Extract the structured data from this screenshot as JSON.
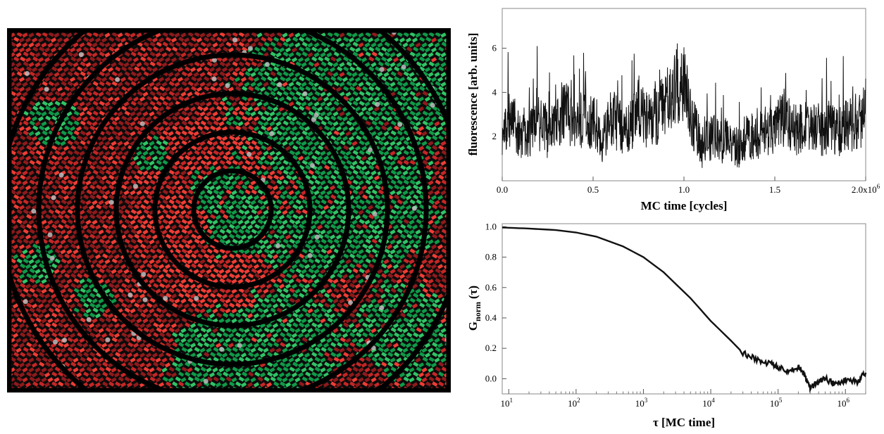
{
  "colors": {
    "background": "#0b0b0b",
    "red_dark": "#8e1a1c",
    "red": "#c52626",
    "red_bright": "#ee3d35",
    "green": "#0f9a48",
    "green_bright": "#30c466",
    "particle": "#bdbdbd",
    "rings": "#000000"
  },
  "simulation": {
    "ring_count": 6,
    "grid": "hexagonal lattice"
  },
  "chart_data": [
    {
      "type": "line",
      "title": "",
      "xlabel": "MC time [cycles]",
      "ylabel": "fluorescence [arb. units]",
      "xlim": [
        0,
        2000000
      ],
      "ylim": [
        0,
        7.8
      ],
      "x_scale": "linear",
      "x_ticks": [
        0,
        500000,
        1000000,
        1500000,
        2000000
      ],
      "x_tick_labels": [
        "0.0",
        "0.5",
        "1.0",
        "1.5",
        "2.0x10"
      ],
      "x_tick_exponent": "6",
      "y_ticks": [
        2,
        4,
        6
      ],
      "y_tick_labels": [
        "2",
        "4",
        "6"
      ],
      "series": [
        {
          "description": "noisy fluorescence trace",
          "x": [
            0,
            50000,
            100000,
            150000,
            200000,
            250000,
            300000,
            350000,
            400000,
            450000,
            500000,
            550000,
            600000,
            650000,
            700000,
            750000,
            800000,
            850000,
            900000,
            950000,
            1000000,
            1050000,
            1100000,
            1150000,
            1200000,
            1250000,
            1300000,
            1350000,
            1400000,
            1450000,
            1500000,
            1550000,
            1600000,
            1650000,
            1700000,
            1750000,
            1800000,
            1850000,
            1900000,
            1950000,
            2000000
          ],
          "y": [
            2.3,
            2.8,
            2.0,
            2.2,
            2.6,
            2.1,
            2.4,
            3.2,
            2.5,
            2.9,
            2.6,
            1.8,
            2.9,
            2.4,
            2.3,
            3.4,
            2.7,
            2.9,
            3.6,
            4.2,
            4.4,
            2.6,
            1.5,
            2.0,
            1.7,
            1.9,
            1.4,
            2.2,
            1.8,
            2.4,
            2.2,
            2.9,
            2.3,
            2.4,
            2.6,
            2.0,
            2.5,
            2.2,
            2.7,
            2.4,
            3.2
          ]
        }
      ]
    },
    {
      "type": "line",
      "title": "",
      "xlabel": "τ [MC time]",
      "ylabel": "G",
      "ylabel_subscript": "norm",
      "ylabel_suffix": "(τ)",
      "x_scale": "log",
      "xlim": [
        8,
        2000000
      ],
      "ylim": [
        -0.1,
        1.02
      ],
      "x_ticks": [
        10,
        100,
        1000,
        10000,
        100000,
        1000000
      ],
      "x_tick_labels": [
        "10",
        "10",
        "10",
        "10",
        "10",
        "10"
      ],
      "x_tick_exponents": [
        "1",
        "2",
        "3",
        "4",
        "5",
        "6"
      ],
      "y_ticks": [
        0.0,
        0.2,
        0.4,
        0.6,
        0.8,
        1.0
      ],
      "y_tick_labels": [
        "0.0",
        "0.2",
        "0.4",
        "0.6",
        "0.8",
        "1.0"
      ],
      "series": [
        {
          "description": "normalized autocorrelation",
          "x": [
            8,
            10,
            20,
            50,
            100,
            200,
            500,
            1000,
            2000,
            5000,
            10000,
            20000,
            30000,
            50000,
            80000,
            100000,
            150000,
            200000,
            250000,
            300000,
            400000,
            500000,
            700000,
            1000000,
            1500000,
            2000000
          ],
          "y": [
            0.995,
            0.993,
            0.988,
            0.978,
            0.962,
            0.935,
            0.87,
            0.8,
            0.7,
            0.53,
            0.38,
            0.25,
            0.17,
            0.12,
            0.1,
            0.07,
            0.05,
            0.08,
            0.02,
            -0.06,
            -0.02,
            0.0,
            -0.04,
            -0.01,
            -0.02,
            0.04
          ]
        }
      ]
    }
  ]
}
